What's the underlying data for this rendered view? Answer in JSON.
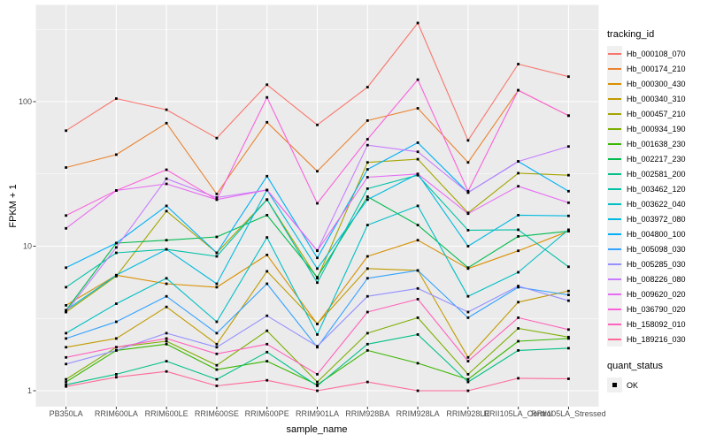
{
  "chart_data": {
    "type": "line",
    "title": "",
    "xlabel": "sample_name",
    "ylabel": "FPKM + 1",
    "y_scale": "log10",
    "grid": true,
    "panel_bg": "#EBEBEB",
    "grid_color": "#FFFFFF",
    "tick_label_color": "#4D4D4D",
    "point_shape": "square",
    "point_color": "#000000",
    "x_categories": [
      "PB350LA",
      "RRIM600LA",
      "RRIM600LE",
      "RRIM600SE",
      "RRIM600PE",
      "RRIM901LA",
      "RRIM928BA",
      "RRIM928LA",
      "RRIM928LE",
      "RRII105LA_Control",
      "RRII105LA_Stressed"
    ],
    "y_ticks": [
      {
        "value": 1,
        "label": "1"
      },
      {
        "value": 10,
        "label": "10"
      },
      {
        "value": 100,
        "label": "100"
      }
    ],
    "y_minor_ticks": [
      3.162,
      31.62,
      316.2
    ],
    "ylim": [
      0.8,
      470
    ],
    "series": [
      {
        "name": "Hb_000108_070",
        "color": "#F8766D",
        "values": [
          63,
          105,
          88,
          56,
          131,
          69,
          126,
          350,
          54,
          182,
          149
        ]
      },
      {
        "name": "Hb_000174_210",
        "color": "#EA8331",
        "values": [
          35,
          43,
          71,
          23,
          72,
          33,
          74,
          90,
          38,
          120,
          80
        ]
      },
      {
        "name": "Hb_000300_430",
        "color": "#D89000",
        "values": [
          3.9,
          6.3,
          5.5,
          5.2,
          8.7,
          2.9,
          8.5,
          11,
          7,
          9.3,
          12.7
        ]
      },
      {
        "name": "Hb_000340_310",
        "color": "#C09B00",
        "values": [
          2.0,
          2.3,
          3.8,
          2.1,
          6.7,
          2.9,
          7.0,
          6.8,
          1.7,
          4.1,
          4.9
        ]
      },
      {
        "name": "Hb_000457_210",
        "color": "#A3A500",
        "values": [
          3.5,
          6.2,
          17.5,
          9.0,
          21,
          6.0,
          38,
          40,
          17,
          32,
          31
        ]
      },
      {
        "name": "Hb_000934_190",
        "color": "#7CAE00",
        "values": [
          1.2,
          2.0,
          2.2,
          1.5,
          2.6,
          1.15,
          2.5,
          3.2,
          1.3,
          2.7,
          2.35
        ]
      },
      {
        "name": "Hb_001638_230",
        "color": "#39B600",
        "values": [
          1.15,
          1.9,
          2.1,
          1.4,
          1.6,
          1.1,
          1.9,
          1.55,
          1.2,
          2.2,
          2.3
        ]
      },
      {
        "name": "Hb_002217_230",
        "color": "#00BB4E",
        "values": [
          3.6,
          10.5,
          11,
          11.6,
          16.4,
          6.1,
          22,
          14,
          7.1,
          11.7,
          12.7
        ]
      },
      {
        "name": "Hb_002581_200",
        "color": "#00C087",
        "values": [
          1.1,
          1.3,
          1.6,
          1.2,
          1.85,
          1.08,
          2.1,
          2.45,
          1.15,
          1.9,
          1.97
        ]
      },
      {
        "name": "Hb_003462_120",
        "color": "#00C1A7",
        "values": [
          5.2,
          9.0,
          9.5,
          8.5,
          21,
          5.6,
          25,
          31,
          12.9,
          13,
          7.2
        ]
      },
      {
        "name": "Hb_003622_040",
        "color": "#00BFC4",
        "values": [
          2.5,
          4.0,
          6.0,
          3.0,
          11.5,
          2.45,
          14,
          19,
          4.5,
          6.6,
          13
        ]
      },
      {
        "name": "Hb_003972_080",
        "color": "#00BAE0",
        "values": [
          3.6,
          6.3,
          9.5,
          5.5,
          24.5,
          7.0,
          21,
          31.6,
          10,
          16.4,
          16.2
        ]
      },
      {
        "name": "Hb_004800_100",
        "color": "#00B0F6",
        "values": [
          7.1,
          10.5,
          19,
          9.0,
          30.5,
          8.3,
          34,
          52,
          23.5,
          38.6,
          24
        ]
      },
      {
        "name": "Hb_005098_030",
        "color": "#35A2FF",
        "values": [
          2.3,
          3.0,
          4.5,
          2.5,
          5.5,
          2.0,
          6.0,
          6.8,
          3.2,
          5.2,
          4.6
        ]
      },
      {
        "name": "Hb_005285_030",
        "color": "#9590FF",
        "values": [
          1.53,
          1.9,
          2.5,
          2.0,
          3.3,
          2.03,
          4.5,
          5.1,
          3.5,
          5.3,
          4.2
        ]
      },
      {
        "name": "Hb_008226_080",
        "color": "#C77CFF",
        "values": [
          3.5,
          9.8,
          29.3,
          21.7,
          24.5,
          9.35,
          50,
          45,
          23.5,
          38.6,
          49
        ]
      },
      {
        "name": "Hb_009620_020",
        "color": "#E76BF3",
        "values": [
          13.3,
          24.3,
          27,
          21,
          24.5,
          9.3,
          30,
          31.6,
          16.8,
          26,
          20
        ]
      },
      {
        "name": "Hb_036790_020",
        "color": "#FA62DB",
        "values": [
          16.3,
          24.3,
          33.8,
          21,
          107,
          19.8,
          55,
          142,
          24,
          120,
          80
        ]
      },
      {
        "name": "Hb_158092_010",
        "color": "#FF62BC",
        "values": [
          1.7,
          2.0,
          2.3,
          1.8,
          2.1,
          1.3,
          3.5,
          4.3,
          1.6,
          3.2,
          2.65
        ]
      },
      {
        "name": "Hb_189216_030",
        "color": "#FF6A98",
        "values": [
          1.07,
          1.24,
          1.36,
          1.08,
          1.18,
          1.0,
          1.15,
          1.0,
          1.0,
          1.22,
          1.21
        ]
      }
    ]
  },
  "legend": {
    "tracking_title": "tracking_id",
    "quant_title": "quant_status",
    "quant_items": [
      {
        "label": "OK"
      }
    ]
  }
}
